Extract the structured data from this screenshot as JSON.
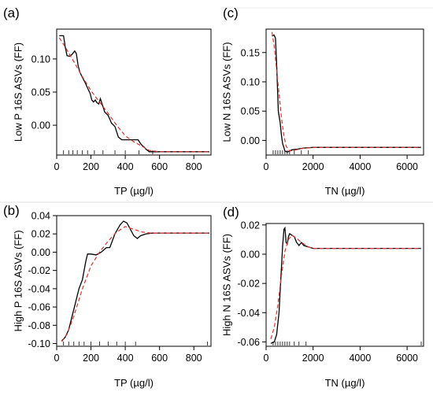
{
  "chart_data": [
    {
      "type": "line",
      "panel_label": "(a)",
      "xlabel": "TP (µg/l)",
      "ylabel": "Low P 16S ASVs (FF)",
      "xlim": [
        0,
        900
      ],
      "ylim": [
        -0.045,
        0.145
      ],
      "xticks": [
        0,
        200,
        400,
        600,
        800
      ],
      "yticks": [
        0.0,
        0.05,
        0.1
      ],
      "ytick_labels": [
        "0.00",
        "0.05",
        "0.10"
      ],
      "series": [
        {
          "style": "solid",
          "color": "#000000",
          "x": [
            15,
            40,
            50,
            60,
            75,
            90,
            105,
            115,
            125,
            135,
            150,
            165,
            180,
            195,
            205,
            215,
            225,
            235,
            245,
            255,
            265,
            280,
            300,
            320,
            340,
            360,
            380,
            400,
            420,
            440,
            460,
            475,
            490,
            500,
            510,
            520,
            540,
            560,
            600,
            700,
            800,
            890
          ],
          "y": [
            0.135,
            0.135,
            0.118,
            0.105,
            0.104,
            0.107,
            0.112,
            0.108,
            0.09,
            0.08,
            0.072,
            0.065,
            0.056,
            0.048,
            0.038,
            0.035,
            0.038,
            0.034,
            0.032,
            0.04,
            0.032,
            0.02,
            0.015,
            0.003,
            -0.002,
            -0.018,
            -0.022,
            -0.022,
            -0.022,
            -0.022,
            -0.022,
            -0.022,
            -0.028,
            -0.031,
            -0.033,
            -0.036,
            -0.04,
            -0.04,
            -0.04,
            -0.04,
            -0.04,
            -0.04
          ]
        },
        {
          "style": "dashed",
          "color": "#e03030",
          "x": [
            15,
            50,
            100,
            150,
            200,
            250,
            300,
            350,
            400,
            450,
            500,
            540,
            600,
            700,
            800,
            890
          ],
          "y": [
            0.132,
            0.118,
            0.096,
            0.073,
            0.052,
            0.035,
            0.018,
            0.0,
            -0.016,
            -0.025,
            -0.032,
            -0.038,
            -0.04,
            -0.04,
            -0.04,
            -0.04
          ]
        }
      ],
      "rug_x": [
        40,
        70,
        95,
        120,
        150,
        180,
        220,
        270,
        340,
        400,
        480,
        560
      ]
    },
    {
      "type": "line",
      "panel_label": "(c)",
      "xlabel": "TN (µg/l)",
      "ylabel": "Low N 16S ASVs (FF)",
      "xlim": [
        0,
        6700
      ],
      "ylim": [
        -0.025,
        0.19
      ],
      "xticks": [
        0,
        2000,
        4000,
        6000
      ],
      "yticks": [
        0.0,
        0.05,
        0.1,
        0.15
      ],
      "ytick_labels": [
        "0.00",
        "0.05",
        "0.10",
        "0.15"
      ],
      "series": [
        {
          "style": "solid",
          "color": "#000000",
          "x": [
            250,
            330,
            400,
            450,
            520,
            560,
            600,
            650,
            700,
            800,
            900,
            1000,
            1100,
            1300,
            1600,
            2000,
            3000,
            4000,
            5000,
            6000,
            6600
          ],
          "y": [
            0.178,
            0.18,
            0.175,
            0.13,
            0.05,
            0.04,
            0.03,
            0.01,
            -0.005,
            -0.018,
            -0.02,
            -0.018,
            -0.016,
            -0.015,
            -0.013,
            -0.012,
            -0.012,
            -0.012,
            -0.012,
            -0.012,
            -0.012
          ]
        },
        {
          "style": "dashed",
          "color": "#e03030",
          "x": [
            250,
            350,
            450,
            550,
            650,
            750,
            850,
            1000,
            1200,
            1500,
            2000,
            3000,
            4000,
            5000,
            6000,
            6600
          ],
          "y": [
            0.185,
            0.16,
            0.12,
            0.08,
            0.04,
            0.01,
            -0.01,
            -0.018,
            -0.017,
            -0.014,
            -0.012,
            -0.012,
            -0.012,
            -0.012,
            -0.012,
            -0.012
          ]
        }
      ],
      "rug_x": [
        300,
        400,
        500,
        600,
        700,
        800,
        900,
        1000,
        1200,
        1500,
        1800
      ]
    },
    {
      "type": "line",
      "panel_label": "(b)",
      "xlabel": "TP (µg/l)",
      "ylabel": "High P 16S ASVs (FF)",
      "xlim": [
        0,
        900
      ],
      "ylim": [
        -0.103,
        0.04
      ],
      "xticks": [
        0,
        200,
        400,
        600,
        800
      ],
      "yticks": [
        -0.1,
        -0.08,
        -0.06,
        -0.04,
        -0.02,
        0.0,
        0.02,
        0.04
      ],
      "ytick_labels": [
        "-0.10",
        "-0.08",
        "-0.06",
        "-0.04",
        "-0.02",
        "0.00",
        "0.02",
        "0.04"
      ],
      "series": [
        {
          "style": "solid",
          "color": "#000000",
          "x": [
            30,
            50,
            70,
            90,
            110,
            130,
            150,
            170,
            180,
            200,
            230,
            260,
            290,
            310,
            340,
            370,
            390,
            410,
            430,
            450,
            470,
            490,
            520,
            560,
            600,
            700,
            800,
            890
          ],
          "y": [
            -0.097,
            -0.093,
            -0.085,
            -0.07,
            -0.055,
            -0.04,
            -0.03,
            -0.01,
            -0.002,
            -0.002,
            -0.003,
            0.0,
            0.005,
            0.005,
            0.02,
            0.03,
            0.034,
            0.032,
            0.025,
            0.018,
            0.015,
            0.018,
            0.02,
            0.021,
            0.021,
            0.021,
            0.021,
            0.021
          ]
        },
        {
          "style": "dashed",
          "color": "#e03030",
          "x": [
            30,
            60,
            100,
            150,
            200,
            250,
            300,
            350,
            400,
            450,
            500,
            550,
            600,
            700,
            800,
            890
          ],
          "y": [
            -0.098,
            -0.09,
            -0.07,
            -0.04,
            -0.015,
            0.0,
            0.012,
            0.022,
            0.028,
            0.025,
            0.022,
            0.021,
            0.021,
            0.021,
            0.021,
            0.021
          ]
        }
      ],
      "rug_x": [
        40,
        70,
        100,
        130,
        160,
        200,
        250,
        300,
        350,
        400,
        460,
        880
      ]
    },
    {
      "type": "line",
      "panel_label": "(d)",
      "xlabel": "TN (µg/l)",
      "ylabel": "High N 16S ASVs (FF)",
      "xlim": [
        0,
        6700
      ],
      "ylim": [
        -0.063,
        0.021
      ],
      "xticks": [
        0,
        2000,
        4000,
        6000
      ],
      "yticks": [
        -0.06,
        -0.04,
        -0.02,
        0.0,
        0.02
      ],
      "ytick_labels": [
        "-0.06",
        "-0.04",
        "-0.02",
        "0.00",
        "0.02"
      ],
      "series": [
        {
          "style": "solid",
          "color": "#000000",
          "x": [
            200,
            350,
            450,
            550,
            650,
            700,
            760,
            800,
            850,
            900,
            950,
            1000,
            1100,
            1200,
            1300,
            1400,
            1500,
            1600,
            1800,
            2000,
            3000,
            4000,
            5000,
            6000,
            6600
          ],
          "y": [
            -0.061,
            -0.06,
            -0.055,
            -0.04,
            -0.01,
            0.005,
            0.017,
            0.018,
            0.008,
            0.007,
            0.012,
            0.014,
            0.013,
            0.012,
            0.008,
            0.006,
            0.008,
            0.006,
            0.005,
            0.004,
            0.004,
            0.004,
            0.004,
            0.004,
            0.004
          ]
        },
        {
          "style": "dashed",
          "color": "#e03030",
          "x": [
            200,
            350,
            500,
            650,
            800,
            950,
            1100,
            1300,
            1500,
            1800,
            2000,
            3000,
            4000,
            5000,
            6000,
            6600
          ],
          "y": [
            -0.058,
            -0.05,
            -0.035,
            -0.015,
            0.002,
            0.01,
            0.013,
            0.011,
            0.008,
            0.005,
            0.004,
            0.004,
            0.004,
            0.004,
            0.004,
            0.004
          ]
        }
      ],
      "rug_x": [
        300,
        400,
        500,
        600,
        700,
        800,
        900,
        1000,
        1200,
        1400,
        1700,
        6600
      ]
    }
  ]
}
